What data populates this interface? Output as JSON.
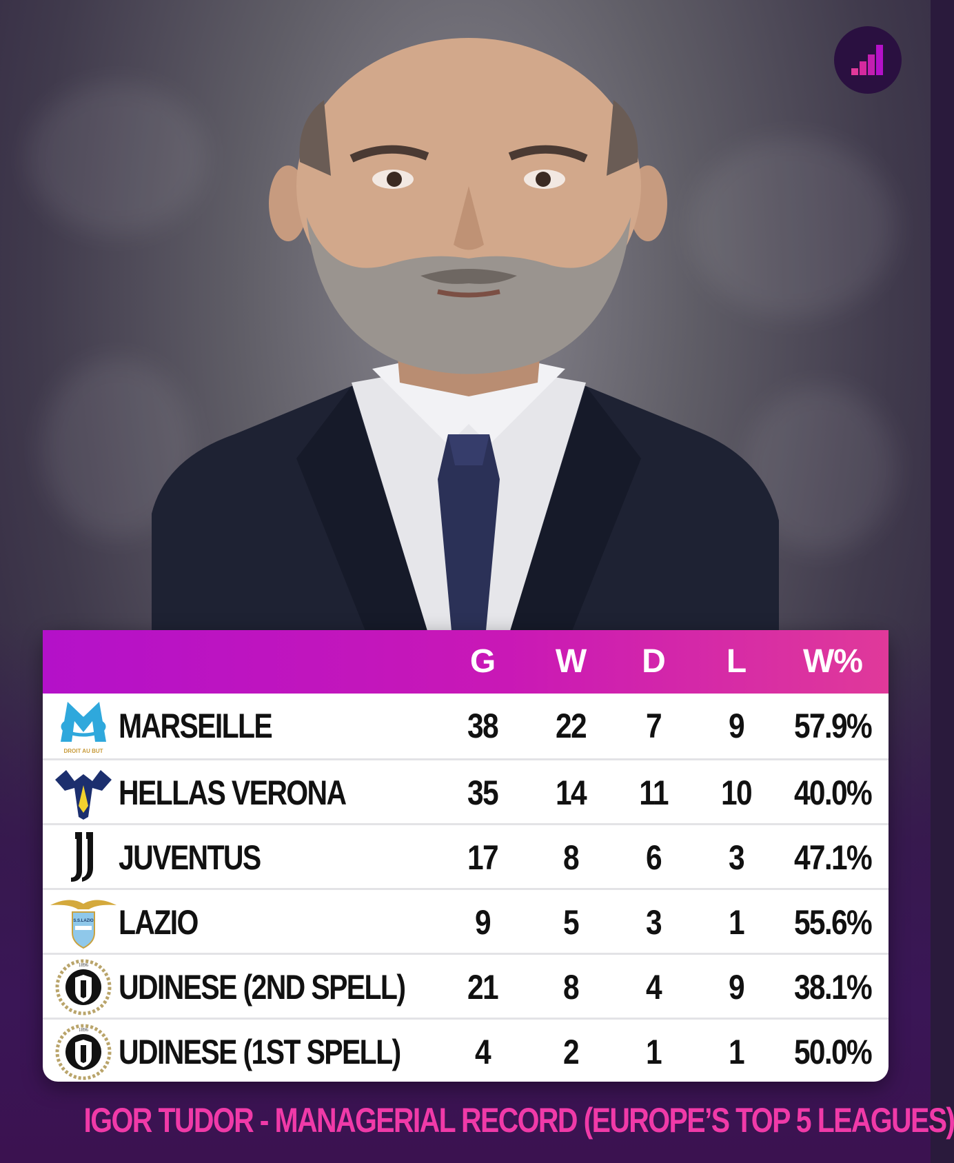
{
  "header": {
    "columns": [
      "G",
      "W",
      "D",
      "L",
      "W%"
    ]
  },
  "rows": [
    {
      "team": "MARSEILLE",
      "crest_icon": "marseille-crest-icon",
      "crest_text": "DROIT AU BUT",
      "g": "38",
      "w": "22",
      "d": "7",
      "l": "9",
      "pct": "57.9%"
    },
    {
      "team": "HELLAS VERONA",
      "crest_icon": "verona-crest-icon",
      "g": "35",
      "w": "14",
      "d": "11",
      "l": "10",
      "pct": "40.0%"
    },
    {
      "team": "JUVENTUS",
      "crest_icon": "juventus-crest-icon",
      "g": "17",
      "w": "8",
      "d": "6",
      "l": "3",
      "pct": "47.1%"
    },
    {
      "team": "LAZIO",
      "crest_icon": "lazio-crest-icon",
      "crest_text": "S.S.LAZIO",
      "g": "9",
      "w": "5",
      "d": "3",
      "l": "1",
      "pct": "55.6%"
    },
    {
      "team": "UDINESE (2ND SPELL)",
      "crest_icon": "udinese-crest-icon",
      "crest_text": "1896",
      "g": "21",
      "w": "8",
      "d": "4",
      "l": "9",
      "pct": "38.1%"
    },
    {
      "team": "UDINESE (1ST SPELL)",
      "crest_icon": "udinese-crest-icon",
      "crest_text": "1896",
      "g": "4",
      "w": "2",
      "d": "1",
      "l": "1",
      "pct": "50.0%"
    }
  ],
  "caption": "IGOR TUDOR - MANAGERIAL RECORD (EUROPE’S TOP 5 LEAGUES)",
  "colors": {
    "header_start": "#b411c9",
    "header_end": "#e0399a",
    "caption": "#f03aa8",
    "logo_bg": "#2a1040"
  },
  "brand_icon": "bar-steps-logo-icon"
}
